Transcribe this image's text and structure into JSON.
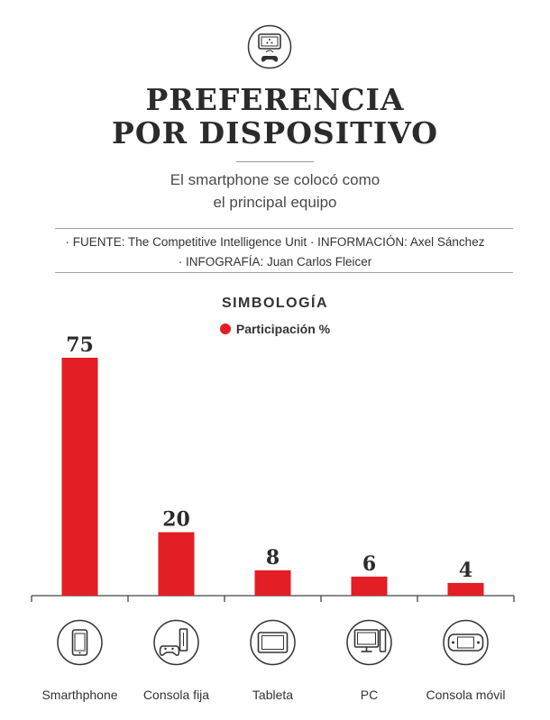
{
  "header": {
    "title_line1": "PREFERENCIA",
    "title_line2": "POR DISPOSITIVO",
    "subtitle_line1": "El smartphone se colocó como",
    "subtitle_line2": "el principal equipo",
    "credits_line1": "· FUENTE: The Competitive Intelligence Unit  · INFORMACIÓN: Axel Sánchez",
    "credits_line2": "· INFOGRAFÍA: Juan Carlos Fleicer",
    "top_icon": "game-console-icon"
  },
  "legend": {
    "title": "SIMBOLOGÍA",
    "item_label": "Participación %",
    "item_color": "#e31e24"
  },
  "chart_data": {
    "type": "bar",
    "title": "PREFERENCIA POR DISPOSITIVO",
    "categories": [
      "Smarthphone",
      "Consola fija",
      "Tableta",
      "PC",
      "Consola móvil"
    ],
    "icons": [
      "smartphone-icon",
      "console-icon",
      "tablet-icon",
      "pc-icon",
      "handheld-console-icon"
    ],
    "series": [
      {
        "name": "Participación %",
        "values": [
          75,
          20,
          8,
          6,
          4
        ],
        "color": "#e31e24"
      }
    ],
    "ylim": [
      0,
      75
    ],
    "grid": false,
    "legend_position": "top-center"
  }
}
